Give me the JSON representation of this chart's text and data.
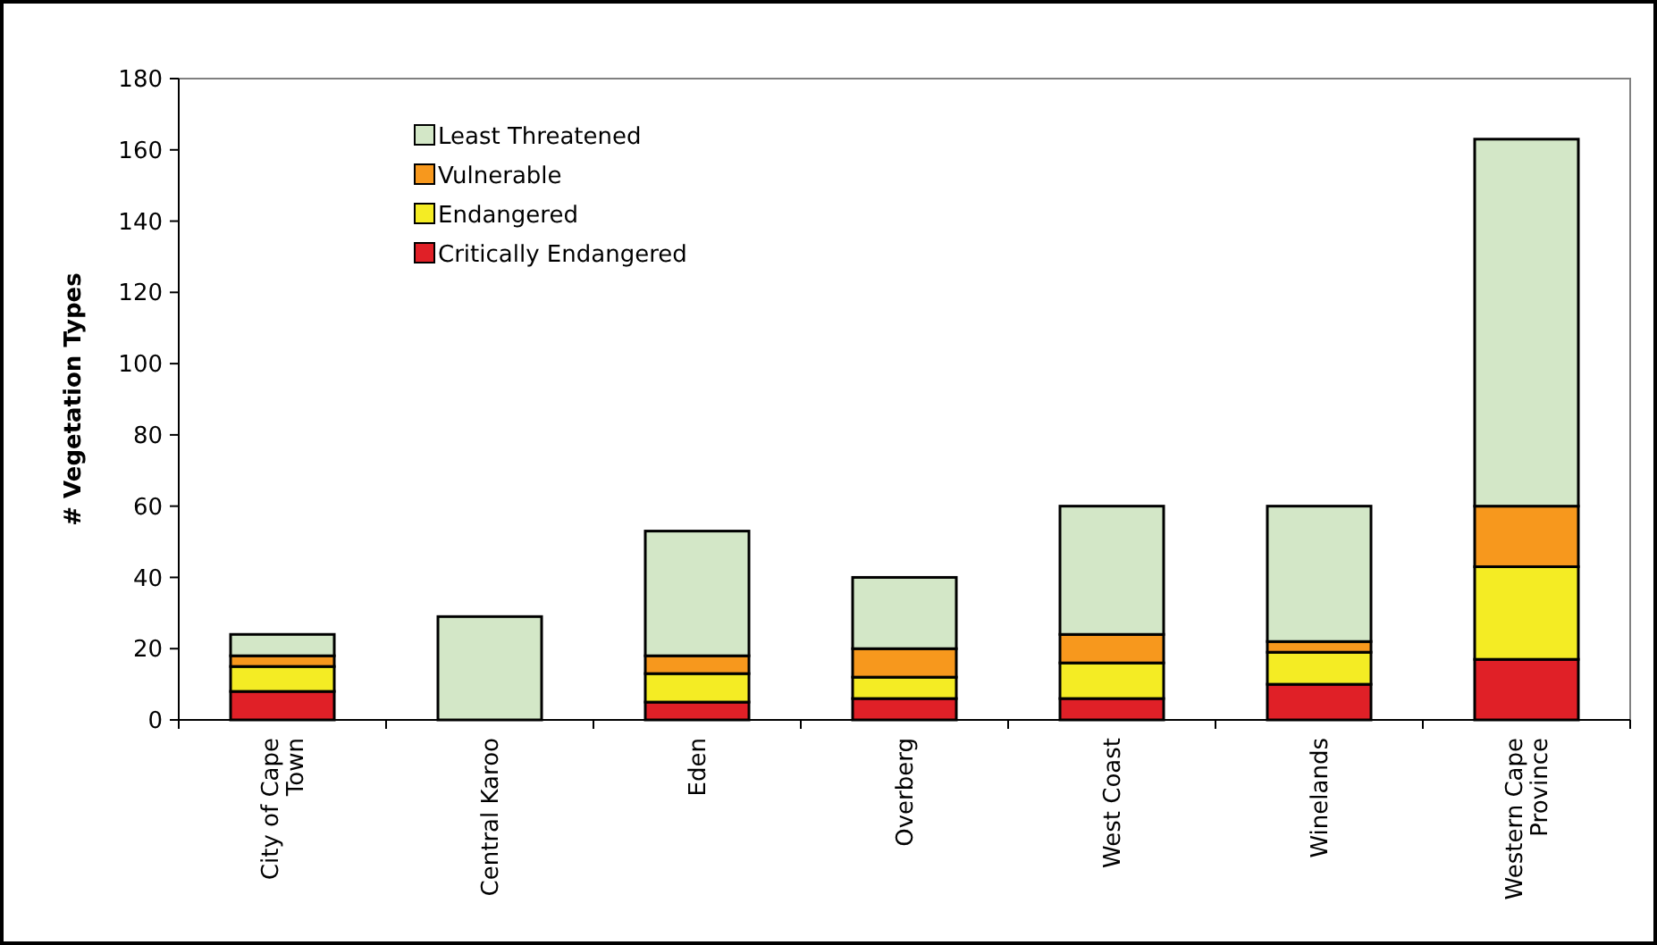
{
  "chart_data": {
    "type": "bar",
    "stacked": true,
    "ylabel": "# Vegetation Types",
    "categories": [
      "City of Cape Town",
      "Central Karoo",
      "Eden",
      "Overberg",
      "West Coast",
      "Winelands",
      "Western Cape Province"
    ],
    "series": [
      {
        "name": "Critically Endangered",
        "color": "#e02027",
        "values": [
          8,
          0,
          5,
          6,
          6,
          10,
          17
        ]
      },
      {
        "name": "Endangered",
        "color": "#f4ec24",
        "values": [
          7,
          0,
          8,
          6,
          10,
          9,
          26
        ]
      },
      {
        "name": "Vulnerable",
        "color": "#f7981d",
        "values": [
          3,
          0,
          5,
          8,
          8,
          3,
          17
        ]
      },
      {
        "name": "Least Threatened",
        "color": "#d3e7c7",
        "values": [
          6,
          29,
          35,
          20,
          36,
          38,
          103
        ]
      }
    ],
    "ylim": [
      0,
      180
    ],
    "yticks": [
      0,
      20,
      40,
      60,
      80,
      100,
      120,
      140,
      160,
      180
    ],
    "grid": false,
    "legend": "top left"
  }
}
